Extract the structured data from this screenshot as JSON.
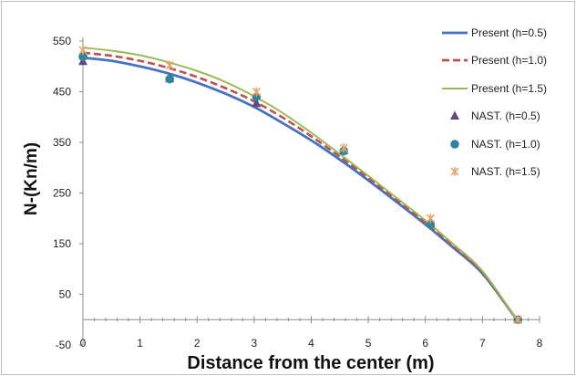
{
  "chart_data": {
    "type": "line",
    "title": "",
    "xlabel": "Distance from the center (m)",
    "ylabel": "N-(Kn/m)",
    "xlim": [
      0,
      8
    ],
    "ylim": [
      -50,
      550
    ],
    "xticks": [
      0,
      1,
      2,
      3,
      4,
      5,
      6,
      7,
      8
    ],
    "yticks": [
      -50,
      50,
      150,
      250,
      350,
      450,
      550
    ],
    "grid": false,
    "legend_position": "right",
    "series": [
      {
        "name": "Present (h=0.5)",
        "kind": "line",
        "style": "solid",
        "color": "#4472c4",
        "x": [
          0,
          0.5,
          1,
          1.5,
          2,
          2.5,
          3,
          3.5,
          4,
          4.5,
          5,
          5.5,
          6,
          6.5,
          7,
          7.6
        ],
        "y": [
          517,
          511,
          500,
          486,
          468,
          446,
          420,
          388,
          354,
          316,
          275,
          232,
          188,
          141,
          91,
          0
        ]
      },
      {
        "name": "Present (h=1.0)",
        "kind": "line",
        "style": "dashed",
        "color": "#c0504d",
        "x": [
          0,
          0.5,
          1,
          1.5,
          2,
          2.5,
          3,
          3.5,
          4,
          4.5,
          5,
          5.5,
          6,
          6.5,
          7,
          7.6
        ],
        "y": [
          527,
          521,
          511,
          497,
          479,
          457,
          431,
          399,
          362,
          322,
          280,
          236,
          192,
          144,
          93,
          0
        ]
      },
      {
        "name": "Present (h=1.5)",
        "kind": "line",
        "style": "solid",
        "color": "#9bbb59",
        "x": [
          0,
          0.5,
          1,
          1.5,
          2,
          2.5,
          3,
          3.5,
          4,
          4.5,
          5,
          5.5,
          6,
          6.5,
          7,
          7.6
        ],
        "y": [
          537,
          531,
          522,
          508,
          491,
          469,
          441,
          408,
          369,
          327,
          284,
          240,
          196,
          148,
          96,
          0
        ]
      },
      {
        "name": "NAST. (h=0.5)",
        "kind": "marker",
        "marker": "triangle",
        "color": "#604a7b",
        "x": [
          0,
          1.52,
          3.04,
          4.57,
          6.09,
          7.62
        ],
        "y": [
          510,
          476,
          427,
          334,
          190,
          0
        ]
      },
      {
        "name": "NAST. (h=1.0)",
        "kind": "marker",
        "marker": "circle",
        "color": "#31849b",
        "x": [
          0,
          1.52,
          3.04,
          4.57,
          6.09,
          7.62
        ],
        "y": [
          519,
          475,
          440,
          333,
          188,
          0
        ]
      },
      {
        "name": "NAST. (h=1.5)",
        "kind": "marker",
        "marker": "x",
        "color": "#e7a36a",
        "x": [
          0,
          1.52,
          3.04,
          4.57,
          6.09,
          7.62
        ],
        "y": [
          532,
          502,
          450,
          339,
          200,
          0
        ]
      }
    ]
  }
}
